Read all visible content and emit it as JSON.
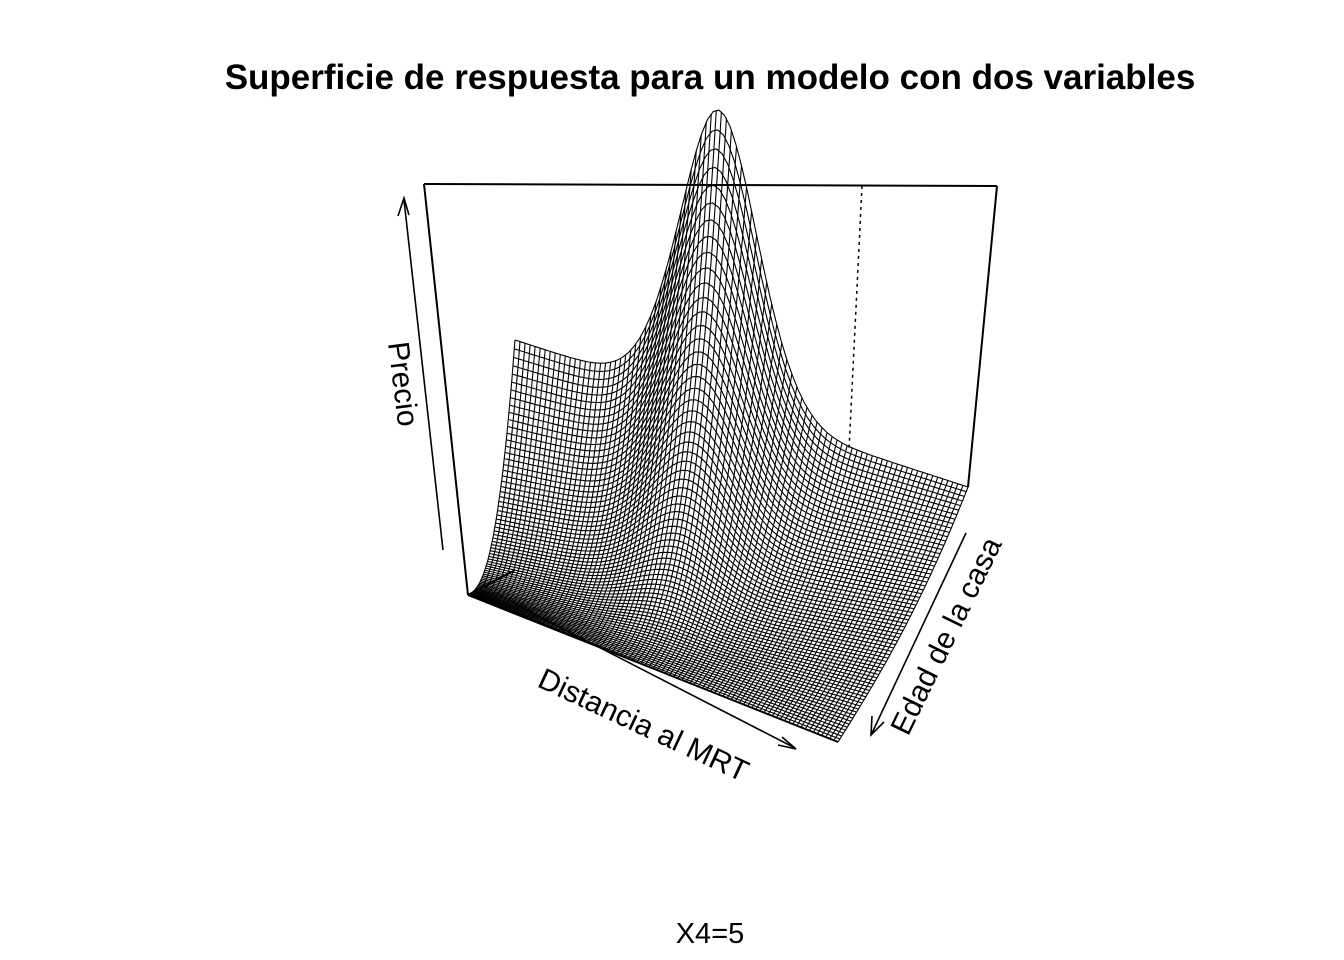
{
  "chart_data": {
    "type": "surface",
    "title": "Superficie de respuesta para un modelo con dos variables",
    "subtitle": "X4=5",
    "xlabel": "Distancia al MRT",
    "ylabel": "Edad de la casa",
    "zlabel": "Precio",
    "ticks_shown": false,
    "grid": false,
    "mesh_color": "#000000",
    "box_color": "#000000",
    "background": "#ffffff"
  }
}
